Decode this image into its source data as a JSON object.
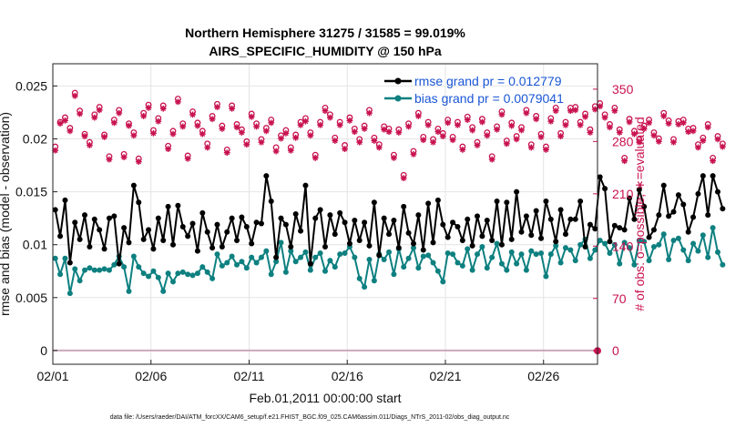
{
  "chart_data": {
    "type": "line",
    "title_line1": "Northern Hemisphere 31275 / 31585 = 99.019%",
    "title_line2": "AIRS_SPECIFIC_HUMIDITY @ 150 hPa",
    "xlabel": "Feb.01,2011 00:00:00 start",
    "ylabel_left": "rmse and bias (model - observation)",
    "ylabel_right": "# of obs: o=possible; ∗=evaluated",
    "footer": "data file: /Users/raeder/DAI/ATM_forcXX/CAM6_setup/f.e21.FHIST_BGC.f09_025.CAM6assim.011/Diags_NTrS_2011-02/obs_diag_output.nc",
    "x_ticks": [
      {
        "day": 0,
        "label": "02/01"
      },
      {
        "day": 5,
        "label": "02/06"
      },
      {
        "day": 10,
        "label": "02/11"
      },
      {
        "day": 15,
        "label": "02/16"
      },
      {
        "day": 20,
        "label": "02/21"
      },
      {
        "day": 25,
        "label": "02/26"
      }
    ],
    "xlim": [
      0,
      27.75
    ],
    "y_left_ticks": [
      {
        "value": 0,
        "label": "0"
      },
      {
        "value": 0.005,
        "label": "0.005"
      },
      {
        "value": 0.01,
        "label": "0.01"
      },
      {
        "value": 0.015,
        "label": "0.015"
      },
      {
        "value": 0.02,
        "label": "0.02"
      },
      {
        "value": 0.025,
        "label": "0.025"
      }
    ],
    "ylim_left": [
      -0.0013,
      0.0271
    ],
    "y_right_ticks": [
      {
        "value": 0,
        "label": "0"
      },
      {
        "value": 70,
        "label": "70"
      },
      {
        "value": 140,
        "label": "140"
      },
      {
        "value": 210,
        "label": "210"
      },
      {
        "value": 280,
        "label": "280"
      },
      {
        "value": 350,
        "label": "350"
      }
    ],
    "ylim_right": [
      -18,
      384
    ],
    "series": [
      {
        "name": "rmse grand pr = 0.012779",
        "color": "#000000",
        "values": [
          0.0133,
          0.0108,
          0.0142,
          0.0083,
          0.0121,
          0.0105,
          0.0128,
          0.0098,
          0.0124,
          0.0114,
          0.0096,
          0.0125,
          0.0127,
          0.0082,
          0.0116,
          0.0102,
          0.0156,
          0.014,
          0.0105,
          0.0114,
          0.0096,
          0.0125,
          0.0104,
          0.0136,
          0.01,
          0.0137,
          0.0117,
          0.0108,
          0.012,
          0.0094,
          0.013,
          0.0112,
          0.0097,
          0.0119,
          0.0098,
          0.0112,
          0.0125,
          0.0104,
          0.0126,
          0.0117,
          0.0101,
          0.0121,
          0.012,
          0.0165,
          0.0141,
          0.0088,
          0.0125,
          0.0119,
          0.0098,
          0.0129,
          0.0113,
          0.0156,
          0.0082,
          0.0125,
          0.0133,
          0.0098,
          0.0128,
          0.011,
          0.013,
          0.0121,
          0.0101,
          0.0123,
          0.0104,
          0.0121,
          0.0099,
          0.014,
          0.009,
          0.0125,
          0.011,
          0.0123,
          0.0097,
          0.0136,
          0.0111,
          0.0101,
          0.0128,
          0.0095,
          0.0139,
          0.0102,
          0.0142,
          0.0119,
          0.0107,
          0.0121,
          0.0117,
          0.0104,
          0.0124,
          0.0099,
          0.0127,
          0.0108,
          0.0123,
          0.0104,
          0.0141,
          0.01,
          0.014,
          0.0105,
          0.015,
          0.0112,
          0.0127,
          0.0109,
          0.0132,
          0.0106,
          0.0141,
          0.0124,
          0.0103,
          0.0133,
          0.011,
          0.0124,
          0.0124,
          0.0141,
          0.0098,
          0.0119,
          0.0115,
          0.0164,
          0.0153,
          0.0103,
          0.0118,
          0.0116,
          0.0114,
          0.0144,
          0.0124,
          0.0152,
          0.0136,
          0.0107,
          0.0114,
          0.0128,
          0.0156,
          0.0127,
          0.0131,
          0.0147,
          0.0138,
          0.0112,
          0.0126,
          0.0148,
          0.0165,
          0.0128,
          0.0165,
          0.015,
          0.0134
        ]
      },
      {
        "name": "bias grand pr = 0.0079041",
        "color": "#0e8080",
        "values": [
          0.0087,
          0.0072,
          0.0087,
          0.0054,
          0.0077,
          0.0066,
          0.0076,
          0.0078,
          0.0076,
          0.0076,
          0.0077,
          0.0076,
          0.0081,
          0.0089,
          0.0079,
          0.0056,
          0.0089,
          0.0079,
          0.0073,
          0.007,
          0.0075,
          0.0069,
          0.0056,
          0.0073,
          0.0065,
          0.0073,
          0.0074,
          0.0072,
          0.0071,
          0.0073,
          0.0079,
          0.0074,
          0.0068,
          0.0091,
          0.008,
          0.0083,
          0.0089,
          0.0081,
          0.0084,
          0.0078,
          0.0088,
          0.0083,
          0.0088,
          0.0094,
          0.0072,
          0.0084,
          0.0102,
          0.0074,
          0.0094,
          0.0084,
          0.0088,
          0.0093,
          0.0076,
          0.0088,
          0.0092,
          0.0075,
          0.0085,
          0.0079,
          0.0091,
          0.0092,
          0.0098,
          0.0088,
          0.0068,
          0.006,
          0.0086,
          0.0066,
          0.0091,
          0.0086,
          0.0093,
          0.0072,
          0.0096,
          0.0079,
          0.0087,
          0.0097,
          0.0078,
          0.0089,
          0.009,
          0.0083,
          0.0075,
          0.0065,
          0.0092,
          0.0091,
          0.0083,
          0.008,
          0.0096,
          0.0076,
          0.0091,
          0.0098,
          0.0078,
          0.0088,
          0.0101,
          0.0082,
          0.0076,
          0.0093,
          0.0082,
          0.0091,
          0.0076,
          0.0094,
          0.0091,
          0.0092,
          0.007,
          0.0091,
          0.0099,
          0.0083,
          0.0097,
          0.0095,
          0.0085,
          0.01,
          0.0105,
          0.0087,
          0.0095,
          0.0104,
          0.0101,
          0.0092,
          0.01,
          0.0082,
          0.0102,
          0.0097,
          0.0081,
          0.0104,
          0.0103,
          0.0085,
          0.0098,
          0.01,
          0.011,
          0.0086,
          0.0104,
          0.0106,
          0.0095,
          0.0085,
          0.0101,
          0.0094,
          0.0109,
          0.0088,
          0.0116,
          0.0093,
          0.0081
        ]
      }
    ],
    "obs_possible": [
      273,
      306,
      312,
      298,
      345,
      321,
      290,
      279,
      316,
      326,
      289,
      260,
      309,
      322,
      263,
      304,
      292,
      257,
      318,
      329,
      295,
      311,
      328,
      274,
      294,
      337,
      304,
      261,
      320,
      305,
      294,
      277,
      314,
      330,
      301,
      269,
      328,
      303,
      296,
      280,
      317,
      304,
      283,
      298,
      309,
      272,
      288,
      295,
      272,
      289,
      306,
      311,
      292,
      262,
      306,
      325,
      316,
      285,
      306,
      275,
      312,
      297,
      283,
      301,
      322,
      285,
      276,
      300,
      297,
      262,
      296,
      235,
      304,
      267,
      318,
      286,
      306,
      283,
      297,
      291,
      309,
      286,
      306,
      273,
      313,
      299,
      279,
      310,
      292,
      260,
      300,
      320,
      281,
      305,
      287,
      299,
      322,
      276,
      314,
      290,
      273,
      311,
      325,
      291,
      306,
      325,
      326,
      306,
      317,
      296,
      327,
      331,
      316,
      303,
      325,
      296,
      258,
      310,
      294,
      283,
      301,
      309,
      292,
      284,
      318,
      308,
      283,
      307,
      309,
      297,
      298,
      276,
      285,
      303,
      258,
      287,
      277
    ],
    "obs_evaluated": [
      268,
      304,
      308,
      294,
      341,
      317,
      287,
      275,
      312,
      322,
      286,
      256,
      305,
      318,
      259,
      301,
      288,
      253,
      314,
      325,
      291,
      307,
      324,
      270,
      290,
      333,
      300,
      257,
      316,
      301,
      290,
      272,
      310,
      326,
      297,
      265,
      324,
      299,
      292,
      276,
      313,
      300,
      279,
      294,
      305,
      267,
      284,
      291,
      268,
      285,
      302,
      307,
      288,
      258,
      302,
      321,
      312,
      281,
      302,
      270,
      308,
      293,
      279,
      297,
      318,
      281,
      272,
      296,
      293,
      258,
      292,
      231,
      300,
      263,
      314,
      282,
      302,
      279,
      293,
      287,
      305,
      282,
      302,
      269,
      309,
      295,
      275,
      306,
      288,
      256,
      296,
      316,
      277,
      301,
      283,
      295,
      318,
      272,
      310,
      286,
      269,
      307,
      321,
      287,
      302,
      321,
      322,
      302,
      313,
      292,
      323,
      327,
      312,
      299,
      321,
      292,
      254,
      306,
      290,
      279,
      297,
      305,
      288,
      280,
      314,
      304,
      279,
      303,
      305,
      293,
      294,
      272,
      281,
      299,
      254,
      283,
      273
    ]
  }
}
